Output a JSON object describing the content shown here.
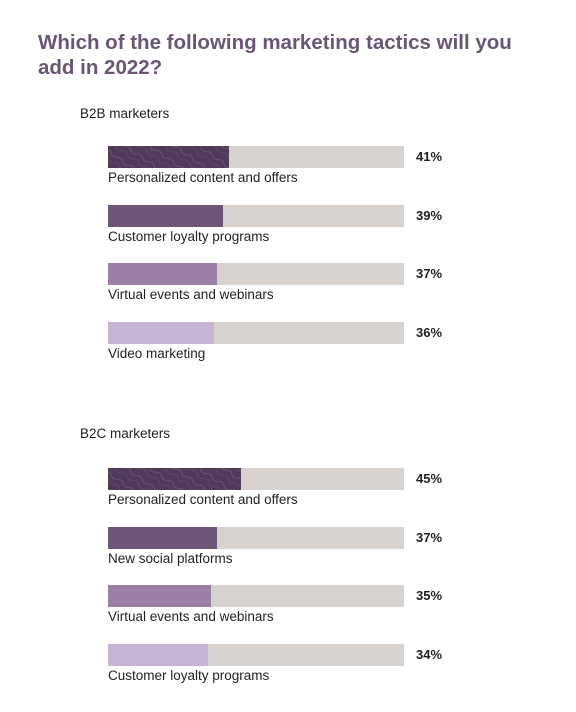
{
  "title": "Which of the following marketing tactics will you add in 2022?",
  "colors": {
    "track": "#d7d2ce",
    "fills": [
      "#4f3a59",
      "#6d5578",
      "#9b7fa6",
      "#c8b4d4"
    ]
  },
  "chart_data": [
    {
      "type": "bar",
      "orientation": "horizontal",
      "subtitle": "B2B marketers",
      "categories": [
        "Personalized content and offers",
        "Customer loyalty programs",
        "Virtual events and webinars",
        "Video marketing"
      ],
      "values": [
        41,
        39,
        37,
        36
      ],
      "value_labels": [
        "41%",
        "39%",
        "37%",
        "36%"
      ],
      "xlim": [
        0,
        100
      ]
    },
    {
      "type": "bar",
      "orientation": "horizontal",
      "subtitle": "B2C marketers",
      "categories": [
        "Personalized content and offers",
        "New social platforms",
        "Virtual events and webinars",
        "Customer loyalty programs"
      ],
      "values": [
        45,
        37,
        35,
        34
      ],
      "value_labels": [
        "45%",
        "37%",
        "35%",
        "34%"
      ],
      "xlim": [
        0,
        100
      ]
    }
  ]
}
